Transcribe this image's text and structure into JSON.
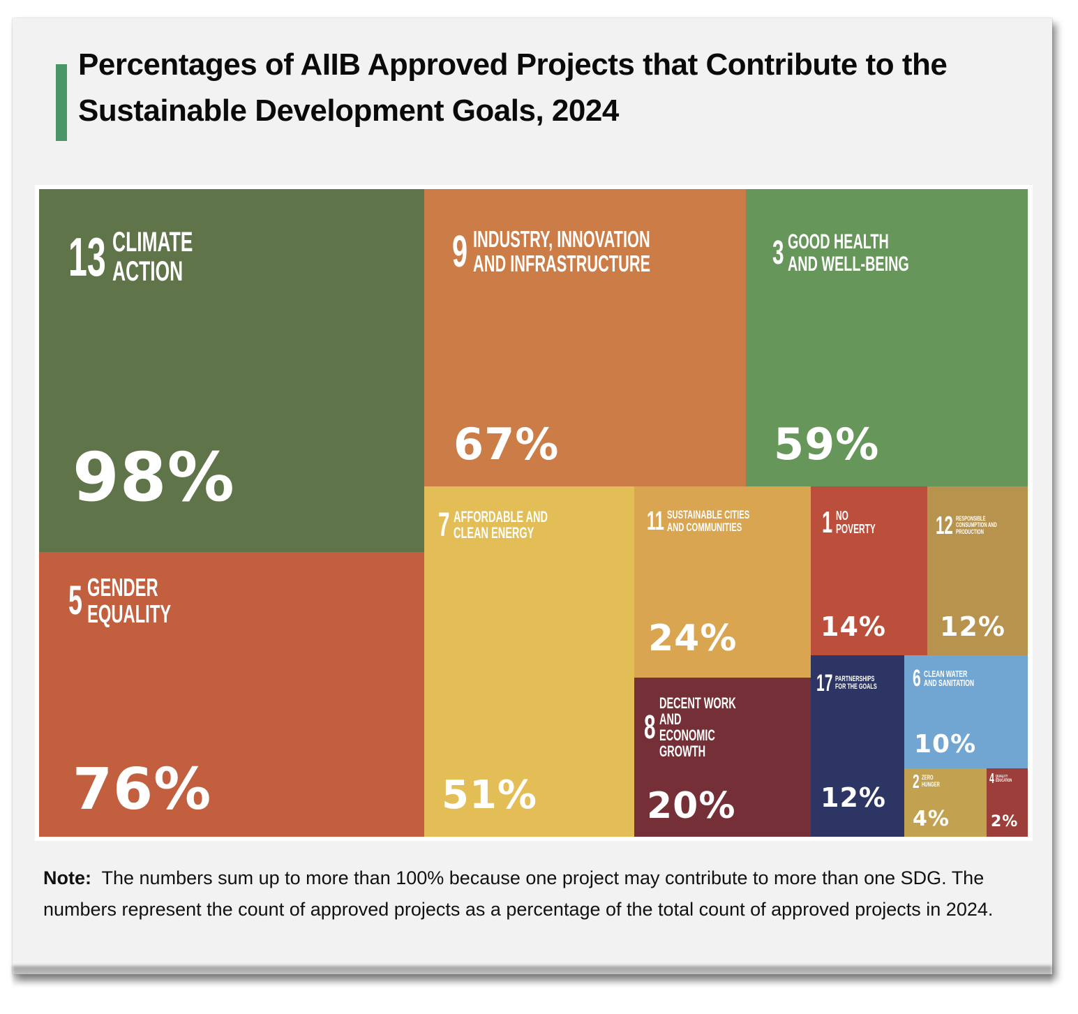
{
  "title": "Percentages of AIIB Approved Projects that Contribute to the Sustainable Development Goals, 2024",
  "accent_color": "#4a9668",
  "note": {
    "label": "Note:",
    "text": "The numbers sum up to more than 100% because one project may contribute to more than one SDG. The numbers represent the count of approved projects as a percentage of the total count of approved projects in 2024."
  },
  "chart_data": {
    "type": "treemap",
    "title": "Percentages of AIIB Approved Projects that Contribute to the Sustainable Development Goals, 2024",
    "unit": "%",
    "items": [
      {
        "sdg": 13,
        "name": "Climate Action",
        "value": 98,
        "label": "98%",
        "color": "#5f7549"
      },
      {
        "sdg": 5,
        "name": "Gender Equality",
        "value": 76,
        "label": "76%",
        "color": "#c25f3f"
      },
      {
        "sdg": 9,
        "name": "Industry, Innovation and Infrastructure",
        "value": 67,
        "label": "67%",
        "color": "#cc7c47"
      },
      {
        "sdg": 3,
        "name": "Good Health and Well-Being",
        "value": 59,
        "label": "59%",
        "color": "#66965a"
      },
      {
        "sdg": 7,
        "name": "Affordable and Clean Energy",
        "value": 51,
        "label": "51%",
        "color": "#e3bd55"
      },
      {
        "sdg": 11,
        "name": "Sustainable Cities and Communities",
        "value": 24,
        "label": "24%",
        "color": "#d9a550"
      },
      {
        "sdg": 8,
        "name": "Decent Work and Economic Growth",
        "value": 20,
        "label": "20%",
        "color": "#752f37"
      },
      {
        "sdg": 1,
        "name": "No Poverty",
        "value": 14,
        "label": "14%",
        "color": "#bc4e3c"
      },
      {
        "sdg": 12,
        "name": "Responsible Consumption and Production",
        "value": 12,
        "label": "12%",
        "color": "#b8934d"
      },
      {
        "sdg": 17,
        "name": "Partnerships for the Goals",
        "value": 12,
        "label": "12%",
        "color": "#2c3563"
      },
      {
        "sdg": 6,
        "name": "Clean Water and Sanitation",
        "value": 10,
        "label": "10%",
        "color": "#72a6d2"
      },
      {
        "sdg": 2,
        "name": "Zero Hunger",
        "value": 4,
        "label": "4%",
        "color": "#c2a250"
      },
      {
        "sdg": 4,
        "name": "Quality Education",
        "value": 2,
        "label": "2%",
        "color": "#9c3f3a"
      }
    ]
  },
  "tile_labels": [
    {
      "num": "13",
      "line1": "Climate",
      "line2": "Action"
    },
    {
      "num": "5",
      "line1": "Gender",
      "line2": "Equality"
    },
    {
      "num": "9",
      "line1": "Industry, Innovation",
      "line2": "and Infrastructure"
    },
    {
      "num": "3",
      "line1": "Good Health",
      "line2": "and Well-Being"
    },
    {
      "num": "7",
      "line1": "Affordable and",
      "line2": "Clean Energy"
    },
    {
      "num": "11",
      "line1": "Sustainable Cities",
      "line2": "and Communities"
    },
    {
      "num": "8",
      "line1": "Decent Work and",
      "line2": "Economic Growth"
    },
    {
      "num": "1",
      "line1": "No",
      "line2": "Poverty"
    },
    {
      "num": "12",
      "line1": "Responsible",
      "line2": "Consumption and Production"
    },
    {
      "num": "17",
      "line1": "Partnerships",
      "line2": "for the Goals"
    },
    {
      "num": "6",
      "line1": "Clean Water",
      "line2": "and Sanitation"
    },
    {
      "num": "2",
      "line1": "Zero",
      "line2": "Hunger"
    },
    {
      "num": "4",
      "line1": "Quality",
      "line2": "Education"
    }
  ]
}
